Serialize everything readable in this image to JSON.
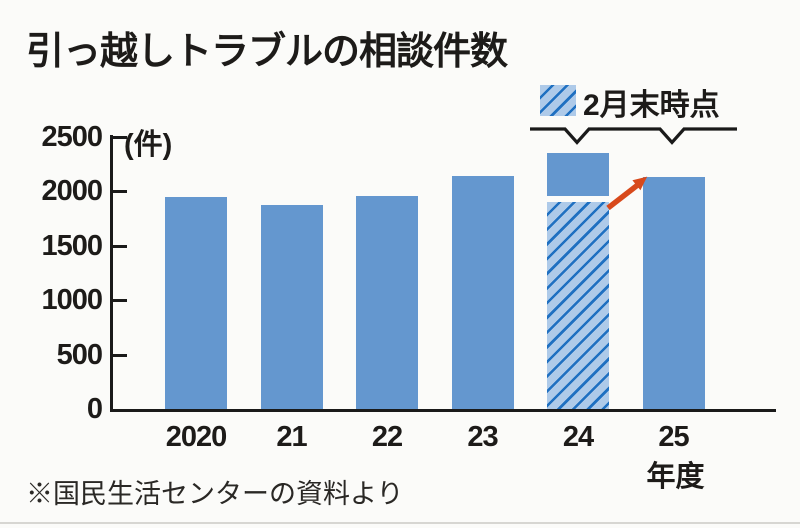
{
  "title": "引っ越しトラブルの相談件数",
  "legend": {
    "label": "2月末時点",
    "swatch": "hatched-blue",
    "applies_to": [
      "24",
      "25"
    ]
  },
  "y_axis": {
    "unit_display": "(件)"
  },
  "x_axis": {
    "unit": "年度"
  },
  "source": "※国民生活センターの資料より",
  "colors": {
    "bar_solid": "#6497cf",
    "hatch_background": "#aecae9",
    "hatch_line": "#1f70c1",
    "arrow": "#d8491b",
    "axis": "#1a1a1a"
  },
  "chart_data": {
    "type": "bar",
    "title": "引っ越しトラブルの相談件数",
    "xlabel": "年度",
    "ylabel": "件",
    "ylim": [
      0,
      2500
    ],
    "y_ticks": [
      2500,
      2000,
      1500,
      1000,
      500,
      0
    ],
    "grid": false,
    "legend_position": "top-right",
    "categories": [
      "2020",
      "21",
      "22",
      "23",
      "24",
      "25"
    ],
    "values": [
      1950,
      1870,
      1960,
      2140,
      2350,
      2130
    ],
    "bars": [
      {
        "label": "2020",
        "value": 1950,
        "pattern": "solid"
      },
      {
        "label": "21",
        "value": 1870,
        "pattern": "solid"
      },
      {
        "label": "22",
        "value": 1960,
        "pattern": "solid"
      },
      {
        "label": "23",
        "value": 2140,
        "pattern": "solid"
      },
      {
        "label": "24",
        "value": 2350,
        "pattern": "split",
        "hatched_value": 1900
      },
      {
        "label": "25",
        "value": 2130,
        "pattern": "hatched"
      }
    ],
    "hatched_meaning": "2月末時点",
    "annotation": {
      "type": "arrow",
      "from_bar": "24",
      "to_bar": "25",
      "meaning": "25年度の2月末時点件数が前年同時点を上回る"
    }
  }
}
